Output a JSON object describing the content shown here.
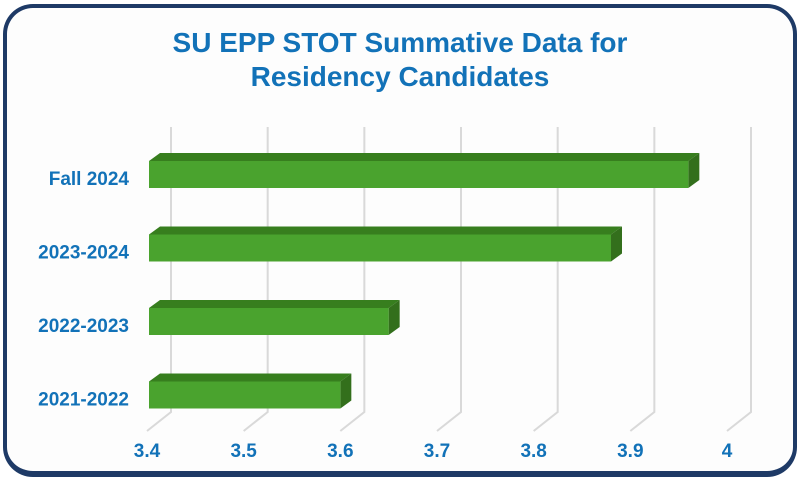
{
  "card": {
    "background": "#fdfdfd",
    "border_color": "#1e3a66"
  },
  "chart_data": {
    "type": "bar",
    "orientation": "horizontal",
    "effect": "3d",
    "title": "SU EPP STOT Summative Data for Residency Candidates",
    "title_lines": [
      "SU EPP STOT Summative Data for",
      "Residency Candidates"
    ],
    "categories": [
      "Fall 2024",
      "2023-2024",
      "2022-2023",
      "2021-2022"
    ],
    "values": [
      3.96,
      3.88,
      3.65,
      3.6
    ],
    "x_ticks": [
      3.4,
      3.5,
      3.6,
      3.7,
      3.8,
      3.9,
      4.0
    ],
    "x_tick_labels": [
      "3.4",
      "3.5",
      "3.6",
      "3.7",
      "3.8",
      "3.9",
      "4"
    ],
    "xlim": [
      3.4,
      4.0
    ],
    "xlabel": "",
    "ylabel": "",
    "grid": true,
    "legend": false,
    "colors": {
      "bar_face": "#4aa32e",
      "bar_top": "#377e1e",
      "bar_side": "#336f1c",
      "grid": "#d9d9d9",
      "category_label": "#1272b8",
      "tick_label": "#1272b8",
      "title": "#1272b8"
    }
  }
}
